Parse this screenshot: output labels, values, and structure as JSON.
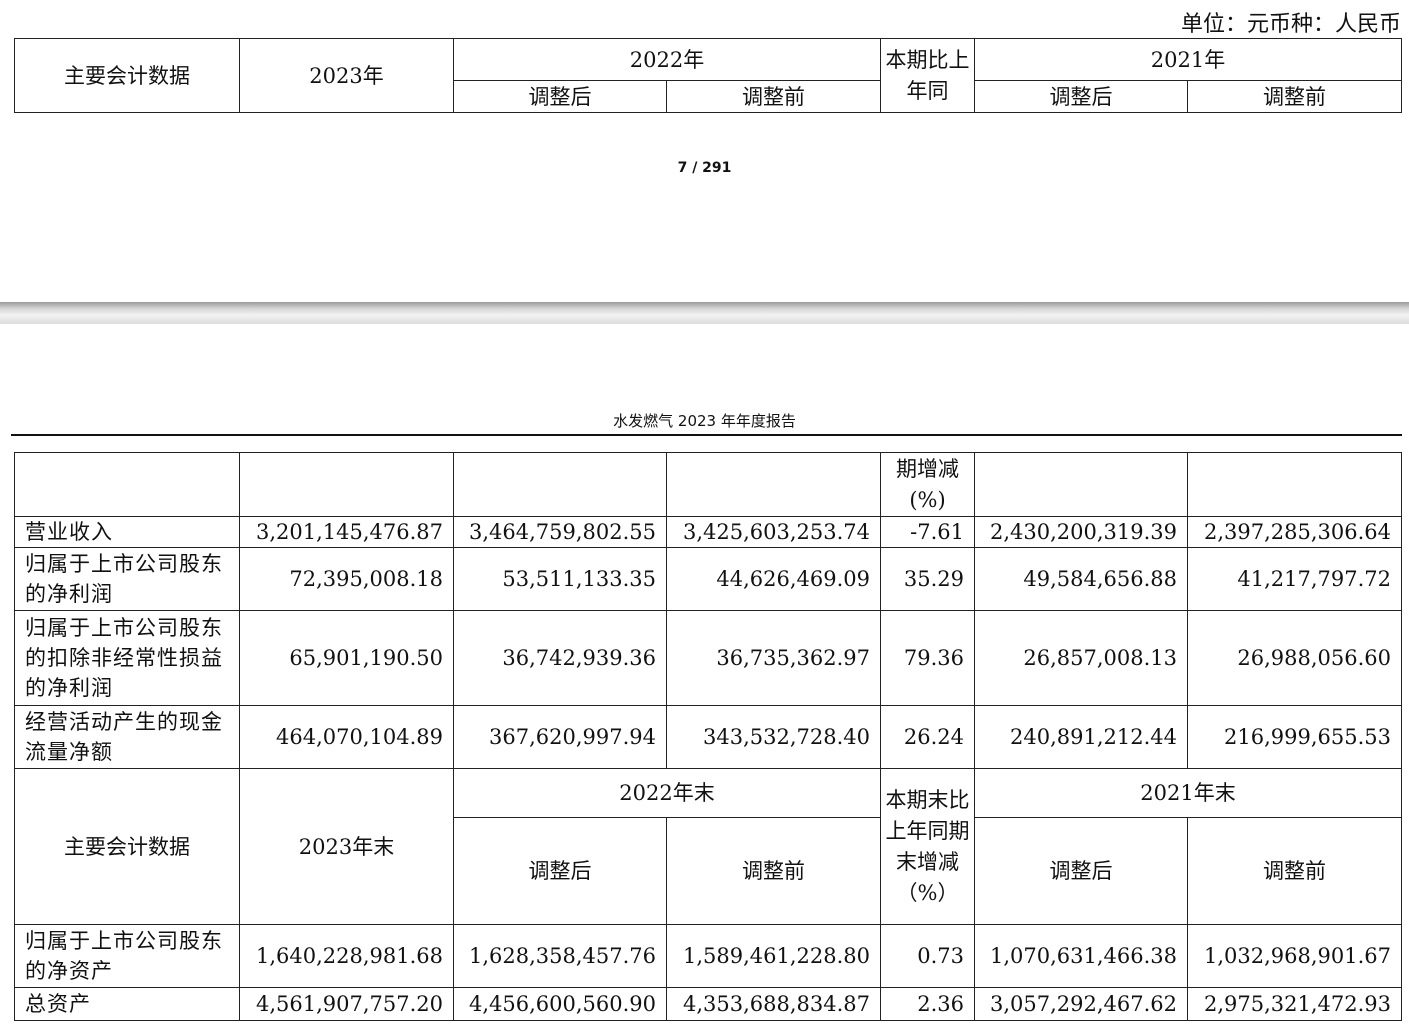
{
  "unit_label": "单位：元币种：人民币",
  "page_number": "7 / 291",
  "running_header": "水发燃气 2023 年年度报告",
  "top_header": {
    "col1": "主要会计数据",
    "col2": "2023年",
    "col3": "2022年",
    "col4": "本期比上年同",
    "col5": "2021年",
    "adj_after": "调整后",
    "adj_before": "调整前"
  },
  "continuation_header": {
    "col4": "期增减(%)"
  },
  "rows": [
    {
      "label": "营业收入",
      "v": [
        "3,201,145,476.87",
        "3,464,759,802.55",
        "3,425,603,253.74",
        "-7.61",
        "2,430,200,319.39",
        "2,397,285,306.64"
      ]
    },
    {
      "label": "归属于上市公司股东的净利润",
      "v": [
        "72,395,008.18",
        "53,511,133.35",
        "44,626,469.09",
        "35.29",
        "49,584,656.88",
        "41,217,797.72"
      ]
    },
    {
      "label": "归属于上市公司股东的扣除非经常性损益的净利润",
      "v": [
        "65,901,190.50",
        "36,742,939.36",
        "36,735,362.97",
        "79.36",
        "26,857,008.13",
        "26,988,056.60"
      ]
    },
    {
      "label": "经营活动产生的现金流量净额",
      "v": [
        "464,070,104.89",
        "367,620,997.94",
        "343,532,728.40",
        "26.24",
        "240,891,212.44",
        "216,999,655.53"
      ]
    }
  ],
  "balance_header": {
    "col1": "主要会计数据",
    "col2": "2023年末",
    "col3": "2022年末",
    "col4": "本期末比上年同期末增减（%）",
    "col5": "2021年末",
    "adj_after": "调整后",
    "adj_before": "调整前"
  },
  "balance_rows": [
    {
      "label": "归属于上市公司股东的净资产",
      "v": [
        "1,640,228,981.68",
        "1,628,358,457.76",
        "1,589,461,228.80",
        "0.73",
        "1,070,631,466.38",
        "1,032,968,901.67"
      ]
    },
    {
      "label": "总资产",
      "v": [
        "4,561,907,757.20",
        "4,456,600,560.90",
        "4,353,688,834.87",
        "2.36",
        "3,057,292,467.62",
        "2,975,321,472.93"
      ]
    }
  ]
}
